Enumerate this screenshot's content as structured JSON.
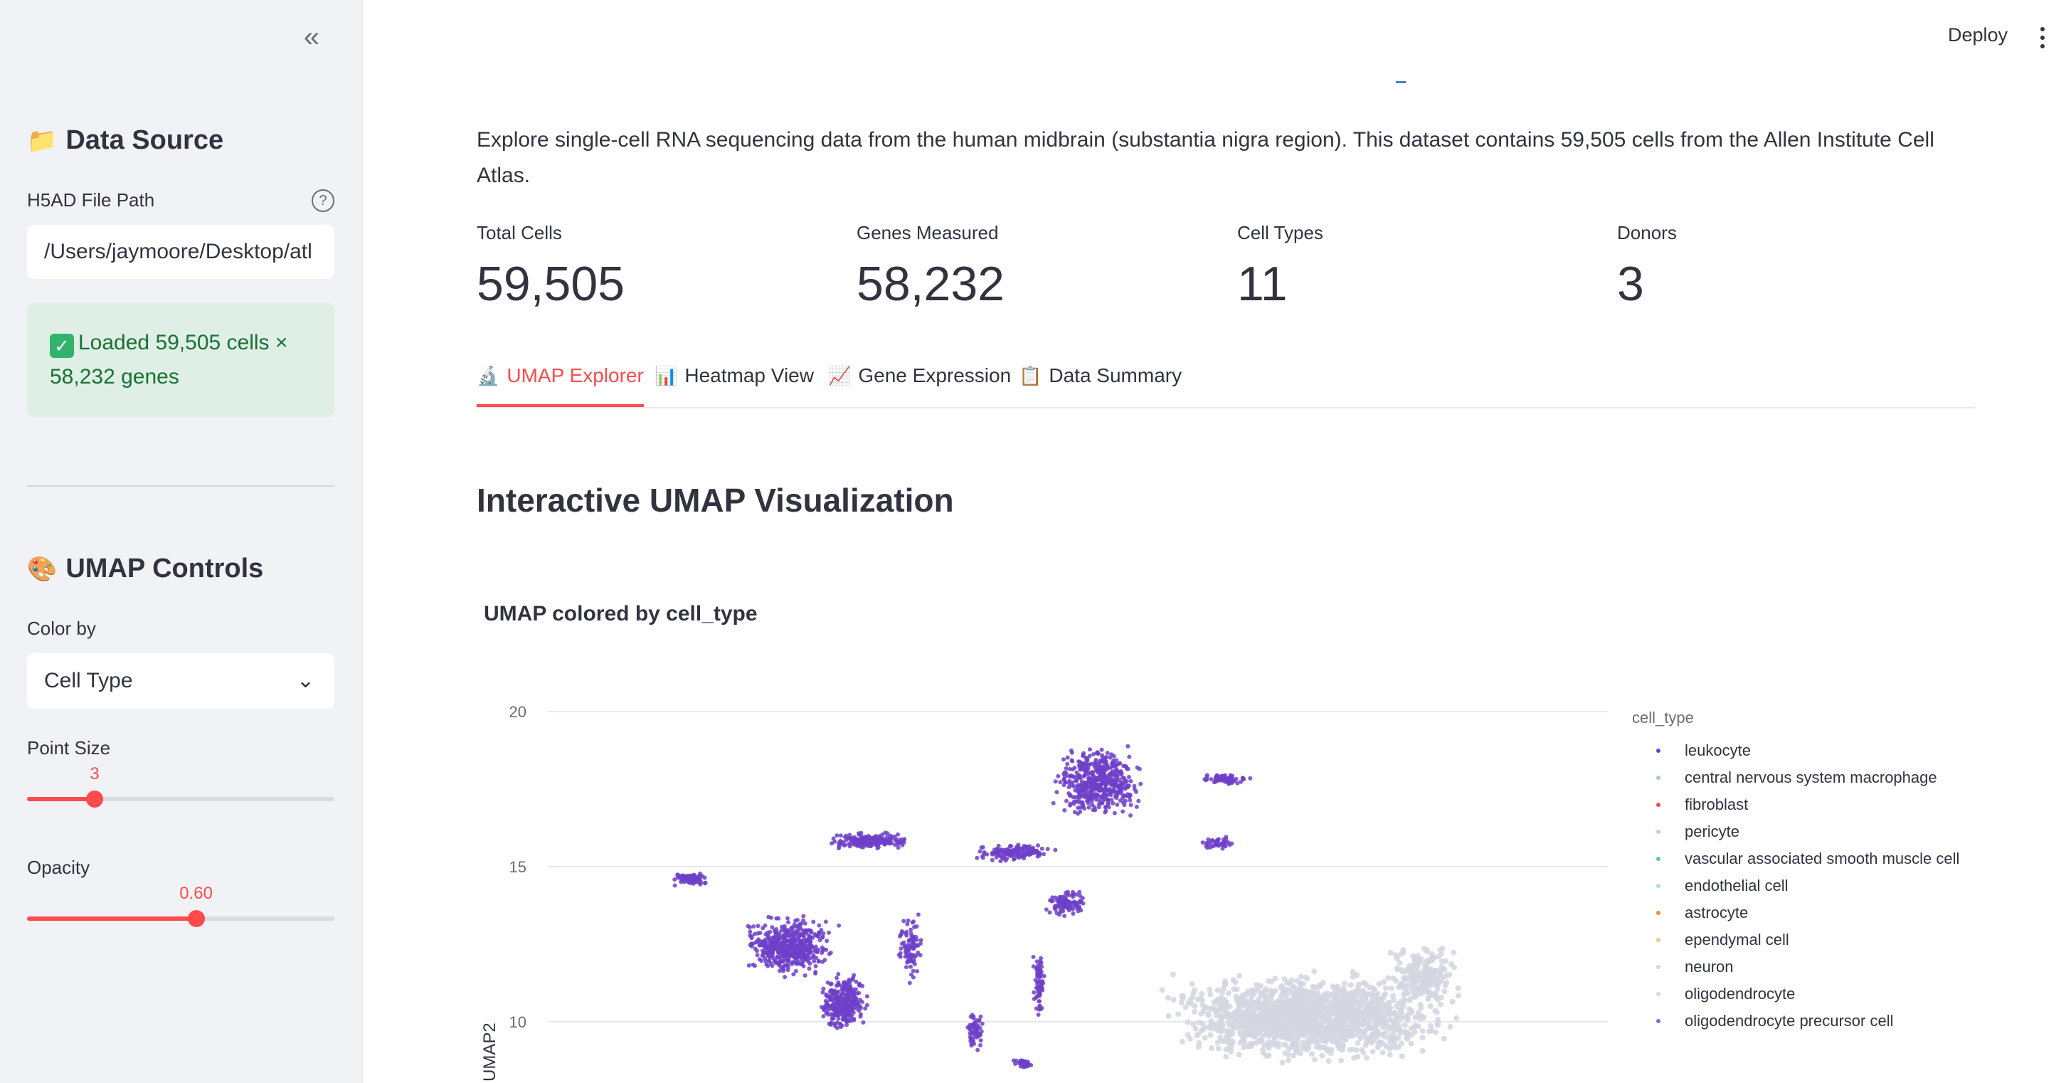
{
  "sidebar": {
    "collapse_label": "«",
    "data_source_heading": "Data Source",
    "data_source_icon": "📁",
    "file_path_label": "H5AD File Path",
    "file_path_value": "/Users/jaymoore/Desktop/atl",
    "help_label": "?",
    "success_message": "Loaded 59,505 cells × 58,232 genes",
    "umap_heading": "UMAP Controls",
    "umap_icon": "🎨",
    "color_by_label": "Color by",
    "color_by_value": "Cell Type",
    "point_size_label": "Point Size",
    "point_size_value": "3",
    "point_size_fraction": 0.22,
    "opacity_label": "Opacity",
    "opacity_value": "0.60",
    "opacity_fraction": 0.55
  },
  "header": {
    "deploy_label": "Deploy"
  },
  "main": {
    "intro": "Explore single-cell RNA sequencing data from the human midbrain (substantia nigra region). This dataset contains 59,505 cells from the Allen Institute Cell Atlas.",
    "metrics": [
      {
        "label": "Total Cells",
        "value": "59,505"
      },
      {
        "label": "Genes Measured",
        "value": "58,232"
      },
      {
        "label": "Cell Types",
        "value": "11"
      },
      {
        "label": "Donors",
        "value": "3"
      }
    ],
    "tabs": [
      {
        "icon": "🔬",
        "label": "UMAP Explorer"
      },
      {
        "icon": "📊",
        "label": "Heatmap View"
      },
      {
        "icon": "📈",
        "label": "Gene Expression"
      },
      {
        "icon": "📋",
        "label": "Data Summary"
      }
    ],
    "section_title": "Interactive UMAP Visualization",
    "chart_title": "UMAP colored by cell_type"
  },
  "chart_data": {
    "type": "scatter",
    "title": "UMAP colored by cell_type",
    "xlabel": "",
    "ylabel": "UMAP2",
    "yticks": [
      "20",
      "15",
      "10"
    ],
    "grid": true,
    "legend_title": "cell_type",
    "legend_position": "right",
    "series": [
      {
        "name": "leukocyte",
        "color": "#6e40c9"
      },
      {
        "name": "central nervous system macrophage",
        "color": "#9ec9e2"
      },
      {
        "name": "fibroblast",
        "color": "#ff4b4b"
      },
      {
        "name": "pericyte",
        "color": "#f2b8c6"
      },
      {
        "name": "vascular associated smooth muscle cell",
        "color": "#5fc6b0"
      },
      {
        "name": "endothelial cell",
        "color": "#a3dfe8"
      },
      {
        "name": "astrocyte",
        "color": "#ff8c2e"
      },
      {
        "name": "ependymal cell",
        "color": "#f5c98a"
      },
      {
        "name": "neuron",
        "color": "#d3d6e0"
      },
      {
        "name": "oligodendrocyte",
        "color": "#e0d0f0"
      },
      {
        "name": "oligodendrocyte precursor cell",
        "color": "#8a6bd1"
      }
    ]
  }
}
